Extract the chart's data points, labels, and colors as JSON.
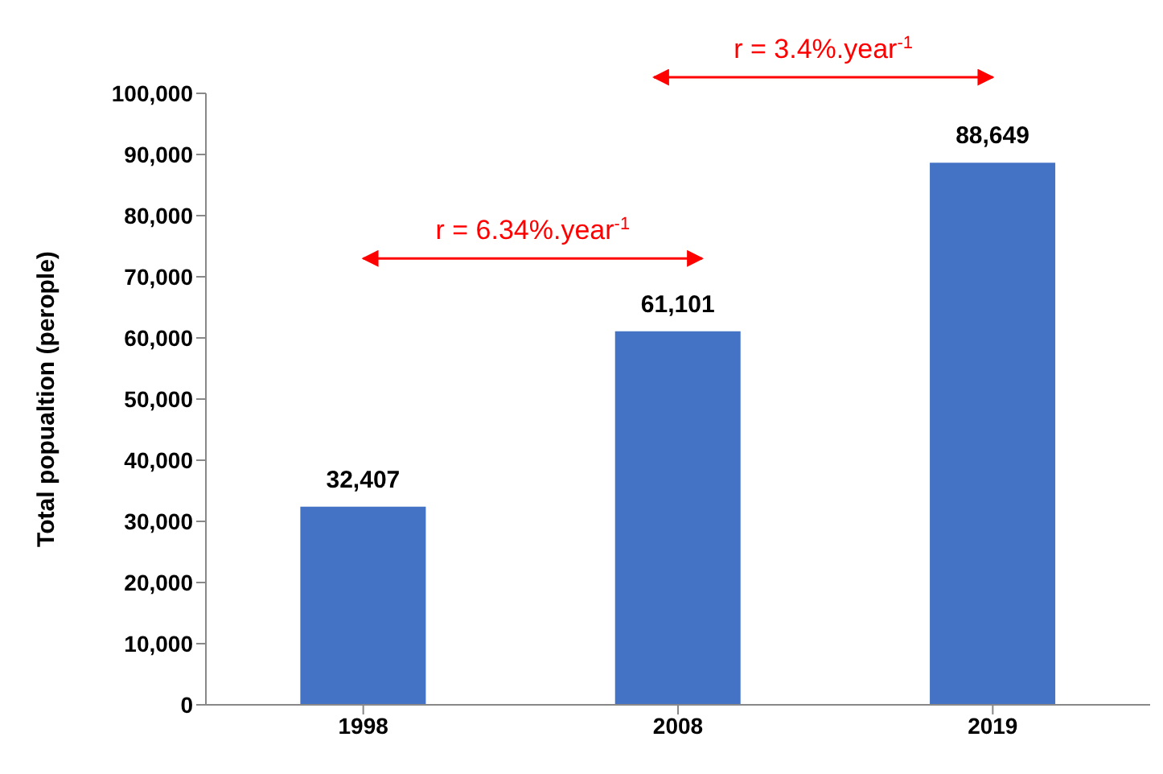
{
  "chart_data": {
    "type": "bar",
    "ylabel": "Total popualtion (perople)",
    "categories": [
      "1998",
      "2008",
      "2019"
    ],
    "values": [
      32407,
      61101,
      88649
    ],
    "color": "#4472c4",
    "value_labels": [
      "32,407",
      "61,101",
      "88,649"
    ],
    "ylim": [
      0,
      100000
    ],
    "yticks": [
      0,
      {
        "value": 10000,
        "label": "10,000"
      },
      {
        "value": 20000,
        "label": "20,000"
      },
      {
        "value": 30000,
        "label": "30,000"
      },
      {
        "value": 40000,
        "label": "40,000"
      },
      {
        "value": 50000,
        "label": "50,000"
      },
      {
        "value": 60000,
        "label": "60,000"
      },
      {
        "value": 70000,
        "label": "70,000"
      },
      {
        "value": 80000,
        "label": "80,000"
      },
      {
        "value": 90000,
        "label": "90,000"
      },
      {
        "value": 100000,
        "label": "100,000"
      }
    ],
    "grid": false,
    "annotations": [
      "r = 6.34%.year$^{-1}$",
      "r = 3.4%.year$^{-1}$"
    ]
  }
}
